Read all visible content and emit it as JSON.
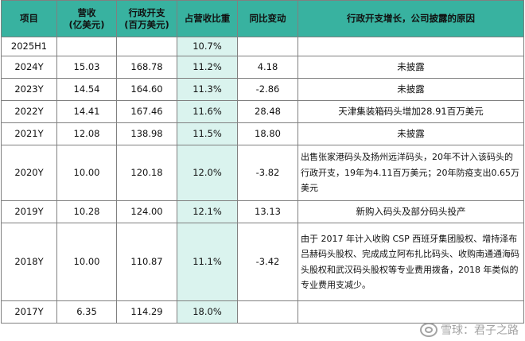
{
  "headers": [
    "项目",
    "营收\n(亿美元)",
    "行政开支\n(百万美元)",
    "占营收比重",
    "同比变动",
    "行政开支增长，公司披露的原因"
  ],
  "rows": [
    {
      "item": "2025H1",
      "revenue": "",
      "admin": "",
      "pct": "10.7%",
      "yoy": "",
      "reason": ""
    },
    {
      "item": "2024Y",
      "revenue": "15.03",
      "admin": "168.78",
      "pct": "11.2%",
      "yoy": "4.18",
      "reason": "未披露"
    },
    {
      "item": "2023Y",
      "revenue": "14.54",
      "admin": "164.60",
      "pct": "11.3%",
      "yoy": "-2.86",
      "reason": "未披露"
    },
    {
      "item": "2022Y",
      "revenue": "14.41",
      "admin": "167.46",
      "pct": "11.6%",
      "yoy": "28.48",
      "reason": "天津集装箱码头增加28.91百万美元"
    },
    {
      "item": "2021Y",
      "revenue": "12.08",
      "admin": "138.98",
      "pct": "11.5%",
      "yoy": "18.80",
      "reason": "未披露"
    },
    {
      "item": "2020Y",
      "revenue": "10.00",
      "admin": "120.18",
      "pct": "12.0%",
      "yoy": "-3.82",
      "reason": "出售张家港码头及扬州远洋码头，20年不计入该码头的行政开支，19年为4.11百万美元；20年防疫支出0.65万美元"
    },
    {
      "item": "2019Y",
      "revenue": "10.28",
      "admin": "124.00",
      "pct": "12.1%",
      "yoy": "13.13",
      "reason": "新购入码头及部分码头投产"
    },
    {
      "item": "2018Y",
      "revenue": "10.00",
      "admin": "110.87",
      "pct": "11.1%",
      "yoy": "-3.42",
      "reason": "由于 2017 年计入收购 CSP 西班牙集团股权、增持泽布吕赫码头股权、完成成立阿布扎比码头、收购南通通海码头股权和武汉码头股权等专业费用拨备，2018 年类似的专业费用支减少。"
    },
    {
      "item": "2017Y",
      "revenue": "6.35",
      "admin": "114.29",
      "pct": "18.0%",
      "yoy": "",
      "reason": ""
    }
  ],
  "watermark": "雪球：君子之路",
  "colors": {
    "header_bg": "#38b2a0",
    "pct_bg": "#daf3ee"
  }
}
